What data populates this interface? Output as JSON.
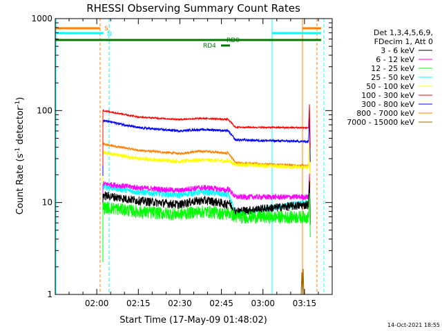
{
  "chart_data": {
    "type": "line",
    "title": "RHESSI Observing Summary Count Rates",
    "xlabel": "Start Time (17-May-09 01:48:02)",
    "ylabel_main": "Count Rate (s",
    "ylabel_sup1": "-1",
    "ylabel_mid": " detector",
    "ylabel_sup2": "-1",
    "ylabel_end": ")",
    "y_scale": "log",
    "ylim": [
      1,
      1000
    ],
    "xlim_minutes": [
      -15,
      85
    ],
    "x_ticks": [
      {
        "m": 0,
        "label": "02:00"
      },
      {
        "m": 15,
        "label": "02:15"
      },
      {
        "m": 30,
        "label": "02:30"
      },
      {
        "m": 45,
        "label": "02:45"
      },
      {
        "m": 60,
        "label": "03:00"
      },
      {
        "m": 75,
        "label": "03:15"
      }
    ],
    "y_ticks": [
      {
        "v": 1,
        "label": "1"
      },
      {
        "v": 10,
        "label": "10"
      },
      {
        "v": 100,
        "label": "100"
      },
      {
        "v": 1000,
        "label": "1000"
      }
    ],
    "legend_header": [
      "Det 1,3,4,5,6,9,",
      "FDecim 1, Att 0"
    ],
    "legend_placement": "right",
    "series": [
      {
        "name": "3 - 6 keV",
        "color": "#000000",
        "levels": [
          12,
          10.5,
          9.5,
          10.5,
          8,
          9.5
        ],
        "noise": 0.11
      },
      {
        "name": "6 - 12 keV",
        "color": "#ff00ff",
        "levels": [
          16,
          14.5,
          13.5,
          14.5,
          11.5,
          11.5
        ],
        "noise": 0.07
      },
      {
        "name": "12 - 25 keV",
        "color": "#00ff00",
        "levels": [
          9,
          8,
          7.5,
          8,
          7,
          7
        ],
        "noise": 0.16
      },
      {
        "name": "25 - 50 keV",
        "color": "#00ffff",
        "levels": [
          15,
          13,
          12,
          13,
          7.5,
          10
        ],
        "noise": 0.08
      },
      {
        "name": "50 - 100 keV",
        "color": "#ffff00",
        "levels": [
          35,
          30,
          28,
          29,
          26,
          24
        ],
        "noise": 0.05
      },
      {
        "name": "100 - 300 keV",
        "color": "#ff0000",
        "levels": [
          100,
          85,
          80,
          82,
          66,
          65
        ],
        "noise": 0.02
      },
      {
        "name": "300 - 800 keV",
        "color": "#0000ff",
        "levels": [
          78,
          65,
          60,
          62,
          48,
          46
        ],
        "noise": 0.03
      },
      {
        "name": "800 - 7000 keV",
        "color": "#ff8000",
        "levels": [
          43,
          37,
          34,
          36,
          27,
          25
        ],
        "noise": 0.03
      },
      {
        "name": "7000 - 15000 keV",
        "color": "#996600",
        "levels": [],
        "noise": 0
      }
    ],
    "level_times_minutes": [
      2.2,
      15,
      30,
      47,
      50,
      76.5
    ],
    "orbit_flags": [
      {
        "label": "S",
        "color": "#ff8000"
      },
      {
        "label": "N",
        "color": "#00ffff"
      }
    ],
    "annotations": [
      "RD0",
      "RD4"
    ],
    "grid": false
  },
  "footer": {
    "date_stamp": "14-Oct-2021 18:55"
  }
}
